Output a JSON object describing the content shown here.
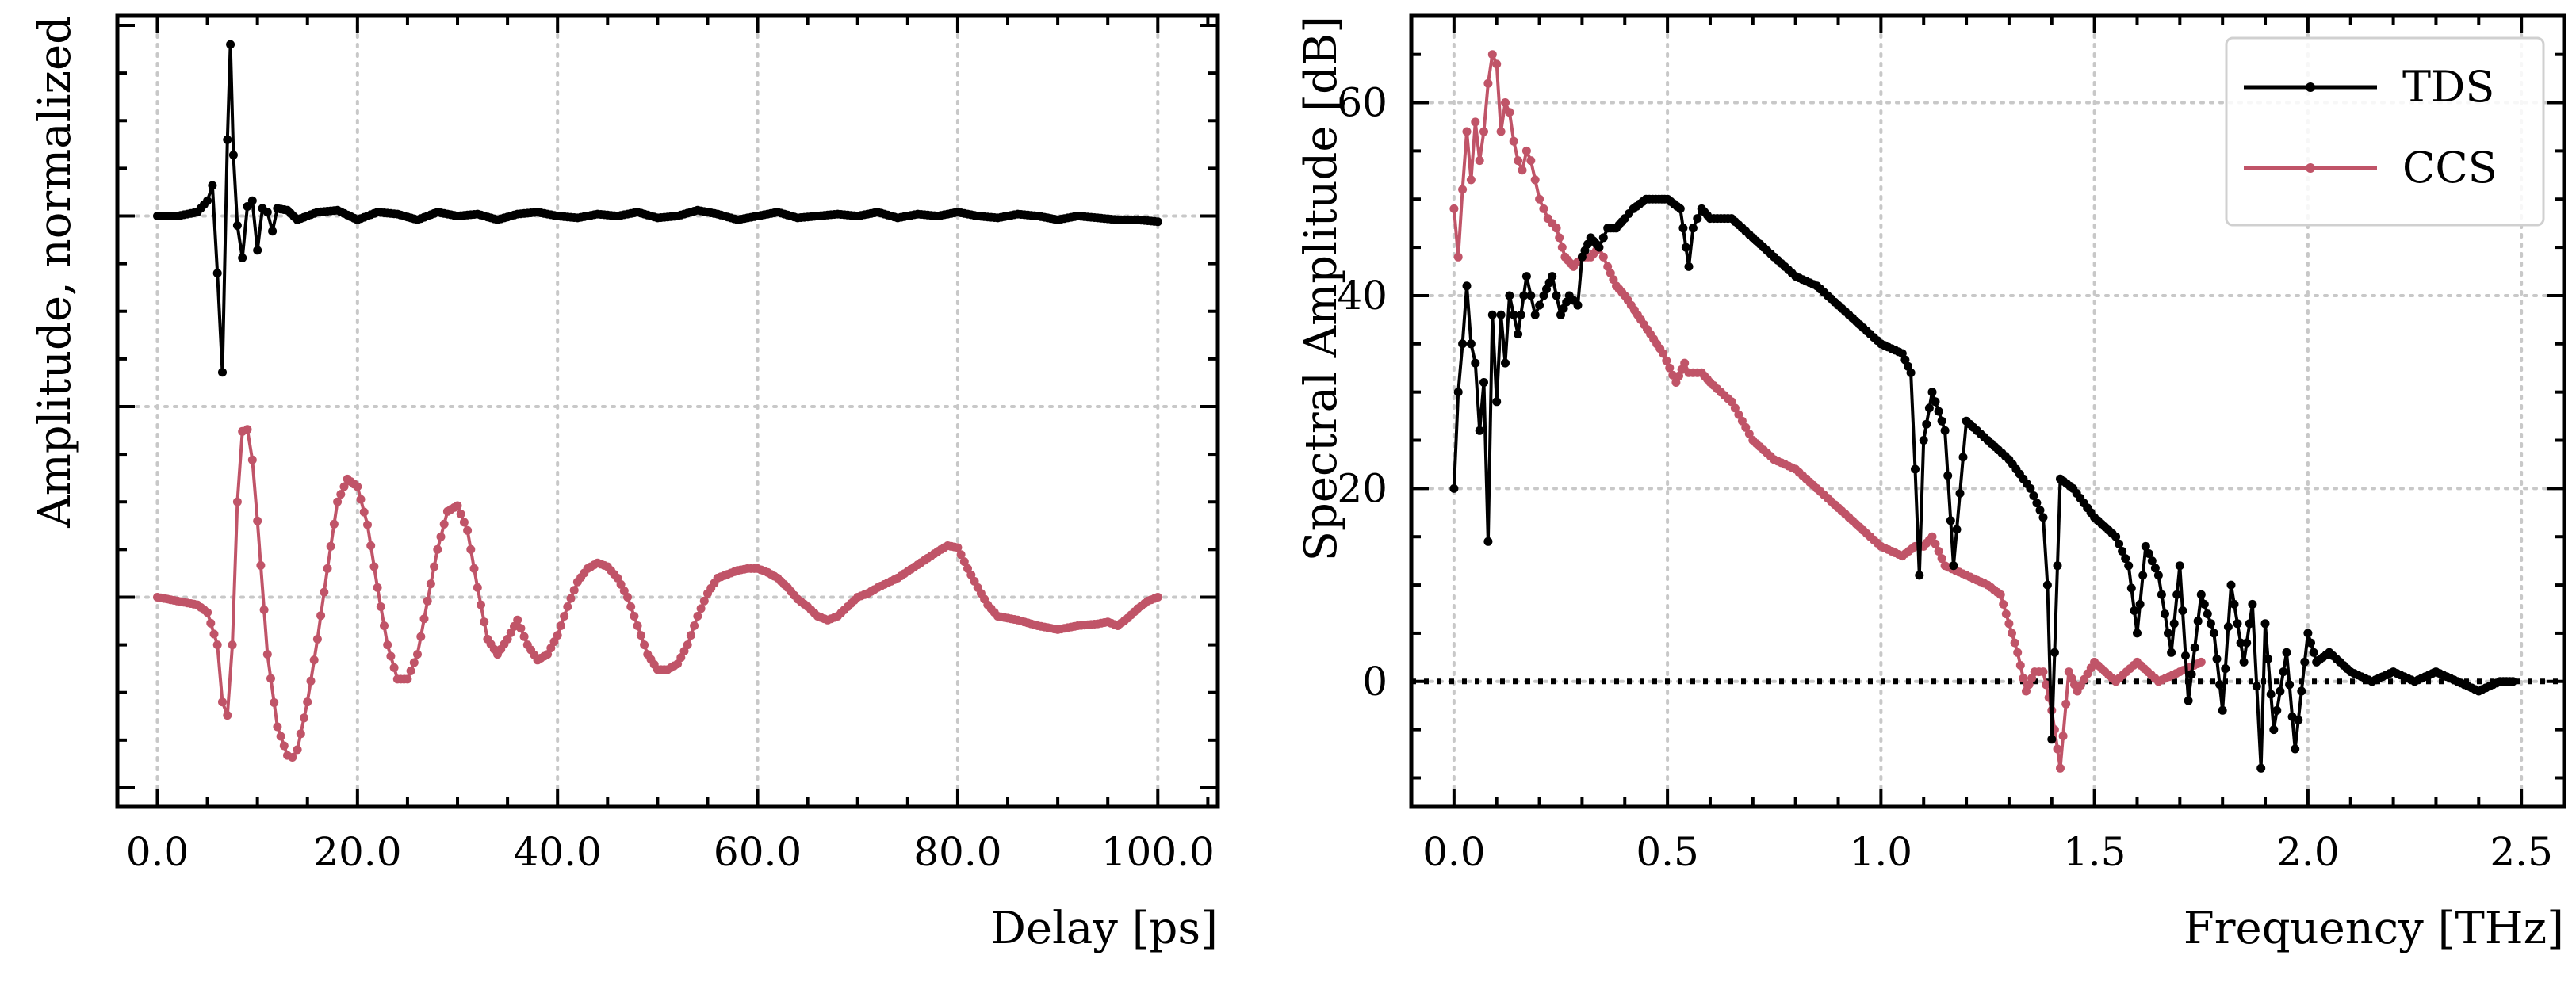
{
  "chart_data": [
    {
      "type": "line",
      "xlabel": "Delay [ps]",
      "ylabel": "Amplitude, normalized",
      "xlim": [
        -4,
        106
      ],
      "ylim": [
        -3.1,
        1.05
      ],
      "x_ticks": [
        0,
        20,
        40,
        60,
        80,
        100
      ],
      "x_tick_labels": [
        "0.0",
        "20.0",
        "40.0",
        "60.0",
        "80.0",
        "100.0"
      ],
      "y_gridlines": [
        -2,
        -1,
        0
      ],
      "y_tick_labels_shown": false,
      "grid": true,
      "series": [
        {
          "name": "TDS",
          "color": "#000000",
          "offset": 0,
          "x": [
            0,
            2,
            4,
            5,
            5.5,
            6,
            6.5,
            7,
            7.3,
            7.6,
            8,
            8.5,
            9,
            9.5,
            10,
            10.5,
            11,
            11.5,
            12,
            13,
            14,
            16,
            18,
            20,
            22,
            24,
            26,
            28,
            30,
            32,
            34,
            36,
            38,
            40,
            42,
            44,
            46,
            48,
            50,
            52,
            54,
            56,
            58,
            60,
            62,
            64,
            66,
            68,
            70,
            72,
            74,
            76,
            78,
            80,
            82,
            84,
            86,
            88,
            90,
            92,
            94,
            96,
            98,
            100
          ],
          "y": [
            0,
            0,
            0.02,
            0.08,
            0.16,
            -0.3,
            -0.82,
            0.4,
            0.9,
            0.32,
            -0.05,
            -0.22,
            0.05,
            0.08,
            -0.18,
            0.04,
            0.02,
            -0.08,
            0.04,
            0.03,
            -0.02,
            0.02,
            0.03,
            -0.02,
            0.02,
            0.01,
            -0.02,
            0.02,
            0,
            0.01,
            -0.02,
            0.01,
            0.02,
            0,
            -0.01,
            0.01,
            0,
            0.02,
            -0.01,
            0,
            0.03,
            0.01,
            -0.02,
            0,
            0.02,
            -0.01,
            0,
            0.01,
            0,
            0.02,
            -0.01,
            0.01,
            0,
            0.02,
            0,
            -0.01,
            0.01,
            0,
            -0.02,
            0,
            -0.01,
            -0.02,
            -0.02,
            -0.03
          ]
        },
        {
          "name": "CCS",
          "color": "#c05468",
          "offset": -2,
          "x": [
            0,
            2,
            4,
            5,
            6,
            6.5,
            7,
            7.5,
            8,
            8.5,
            9,
            9.5,
            10,
            11,
            12,
            13,
            13.5,
            14,
            15,
            16,
            17,
            18,
            19,
            20,
            21,
            22,
            23,
            24,
            25,
            26,
            27,
            28,
            29,
            30,
            31,
            32,
            33,
            34,
            35,
            36,
            37,
            38,
            39,
            40,
            41,
            42,
            43,
            44,
            45,
            46,
            47,
            48,
            49,
            50,
            51,
            52,
            53,
            54,
            55,
            56,
            57,
            58,
            59,
            60,
            61,
            62,
            63,
            64,
            65,
            66,
            67,
            68,
            69,
            70,
            71,
            72,
            74,
            76,
            78,
            79,
            80,
            81,
            82,
            83,
            84,
            86,
            88,
            90,
            92,
            94,
            95,
            96,
            97,
            98,
            99,
            100
          ],
          "y": [
            0,
            -0.02,
            -0.04,
            -0.08,
            -0.25,
            -0.55,
            -0.62,
            -0.25,
            0.5,
            0.87,
            0.88,
            0.72,
            0.4,
            -0.3,
            -0.68,
            -0.83,
            -0.84,
            -0.8,
            -0.55,
            -0.22,
            0.15,
            0.5,
            0.62,
            0.58,
            0.38,
            0.05,
            -0.25,
            -0.43,
            -0.43,
            -0.3,
            -0.02,
            0.25,
            0.45,
            0.48,
            0.35,
            0.05,
            -0.22,
            -0.3,
            -0.22,
            -0.12,
            -0.25,
            -0.33,
            -0.3,
            -0.2,
            -0.05,
            0.08,
            0.15,
            0.18,
            0.16,
            0.1,
            0,
            -0.15,
            -0.3,
            -0.38,
            -0.38,
            -0.35,
            -0.25,
            -0.1,
            0.02,
            0.1,
            0.12,
            0.14,
            0.15,
            0.15,
            0.13,
            0.1,
            0.05,
            -0.01,
            -0.05,
            -0.1,
            -0.12,
            -0.1,
            -0.05,
            0,
            0.02,
            0.05,
            0.1,
            0.17,
            0.24,
            0.27,
            0.26,
            0.15,
            0.05,
            -0.04,
            -0.1,
            -0.12,
            -0.15,
            -0.17,
            -0.15,
            -0.14,
            -0.13,
            -0.15,
            -0.11,
            -0.06,
            -0.02,
            0
          ]
        }
      ]
    },
    {
      "type": "line",
      "xlabel": "Frequency [THz]",
      "ylabel": "Spectral Amplitude [dB]",
      "xlim": [
        -0.1,
        2.6
      ],
      "ylim": [
        -13,
        69
      ],
      "x_ticks": [
        0,
        0.5,
        1,
        1.5,
        2,
        2.5
      ],
      "x_tick_labels": [
        "0.0",
        "0.5",
        "1.0",
        "1.5",
        "2.0",
        "2.5"
      ],
      "y_ticks": [
        0,
        20,
        40,
        60
      ],
      "y_tick_labels": [
        "0",
        "20",
        "40",
        "60"
      ],
      "reference_line": 0,
      "grid": true,
      "legend": {
        "position": "top-right",
        "entries": [
          "TDS",
          "CCS"
        ]
      },
      "series": [
        {
          "name": "TDS",
          "color": "#000000",
          "x": [
            0,
            0.01,
            0.02,
            0.03,
            0.04,
            0.05,
            0.06,
            0.07,
            0.08,
            0.09,
            0.1,
            0.11,
            0.12,
            0.13,
            0.15,
            0.17,
            0.19,
            0.21,
            0.23,
            0.25,
            0.27,
            0.29,
            0.3,
            0.32,
            0.34,
            0.36,
            0.38,
            0.4,
            0.42,
            0.45,
            0.48,
            0.5,
            0.53,
            0.55,
            0.56,
            0.58,
            0.6,
            0.65,
            0.7,
            0.75,
            0.8,
            0.85,
            0.9,
            0.95,
            1.0,
            1.05,
            1.07,
            1.08,
            1.09,
            1.1,
            1.12,
            1.15,
            1.17,
            1.2,
            1.25,
            1.3,
            1.35,
            1.38,
            1.39,
            1.4,
            1.42,
            1.45,
            1.5,
            1.55,
            1.58,
            1.6,
            1.62,
            1.65,
            1.68,
            1.7,
            1.72,
            1.75,
            1.78,
            1.8,
            1.82,
            1.85,
            1.87,
            1.89,
            1.9,
            1.92,
            1.95,
            1.97,
            2.0,
            2.02,
            2.05,
            2.1,
            2.15,
            2.2,
            2.25,
            2.3,
            2.35,
            2.4,
            2.45,
            2.48
          ],
          "y": [
            20,
            30,
            35,
            41,
            35,
            33,
            26,
            31,
            14.5,
            38,
            29,
            38,
            33,
            40,
            36,
            42,
            38,
            40,
            42,
            38,
            40,
            39,
            44,
            46,
            45,
            47,
            47,
            48,
            49,
            50,
            50,
            50,
            49,
            43,
            47,
            49,
            48,
            48,
            46,
            44,
            42,
            41,
            39,
            37,
            35,
            34,
            32,
            22,
            11,
            25,
            30,
            26,
            12,
            27,
            25,
            23,
            20,
            17,
            10,
            -6,
            21,
            20,
            17,
            15,
            12,
            5,
            14,
            11,
            3,
            12,
            -2,
            9,
            5,
            -3,
            10,
            2,
            8,
            -9,
            6,
            -5,
            3,
            -7,
            5,
            2,
            3,
            1,
            0,
            1,
            0,
            1,
            0,
            -1,
            0,
            0
          ]
        },
        {
          "name": "CCS",
          "color": "#c05468",
          "x": [
            0,
            0.01,
            0.02,
            0.03,
            0.04,
            0.05,
            0.06,
            0.07,
            0.08,
            0.09,
            0.1,
            0.11,
            0.12,
            0.13,
            0.14,
            0.15,
            0.16,
            0.17,
            0.18,
            0.19,
            0.2,
            0.22,
            0.24,
            0.26,
            0.28,
            0.3,
            0.32,
            0.34,
            0.36,
            0.38,
            0.4,
            0.43,
            0.46,
            0.49,
            0.52,
            0.54,
            0.55,
            0.56,
            0.58,
            0.6,
            0.65,
            0.7,
            0.75,
            0.8,
            0.85,
            0.9,
            0.95,
            1.0,
            1.05,
            1.08,
            1.1,
            1.12,
            1.15,
            1.2,
            1.25,
            1.28,
            1.3,
            1.32,
            1.34,
            1.36,
            1.38,
            1.4,
            1.42,
            1.44,
            1.46,
            1.5,
            1.55,
            1.6,
            1.65,
            1.7,
            1.75
          ],
          "y": [
            49,
            44,
            51,
            57,
            52,
            58,
            54,
            57,
            62,
            65,
            64,
            57,
            60,
            59,
            56,
            54,
            53,
            55,
            54,
            52,
            50,
            48,
            47,
            44,
            43,
            44,
            44,
            45,
            43,
            41,
            40,
            38,
            36,
            34,
            31,
            33,
            32,
            32,
            32,
            31,
            29,
            25,
            23,
            22,
            20,
            18,
            16,
            14,
            13,
            14,
            14,
            15,
            12,
            11,
            10,
            9,
            6,
            3,
            -1,
            1,
            1,
            -3,
            -9,
            1,
            -1,
            2,
            0,
            2,
            0,
            1,
            2
          ]
        }
      ]
    }
  ]
}
